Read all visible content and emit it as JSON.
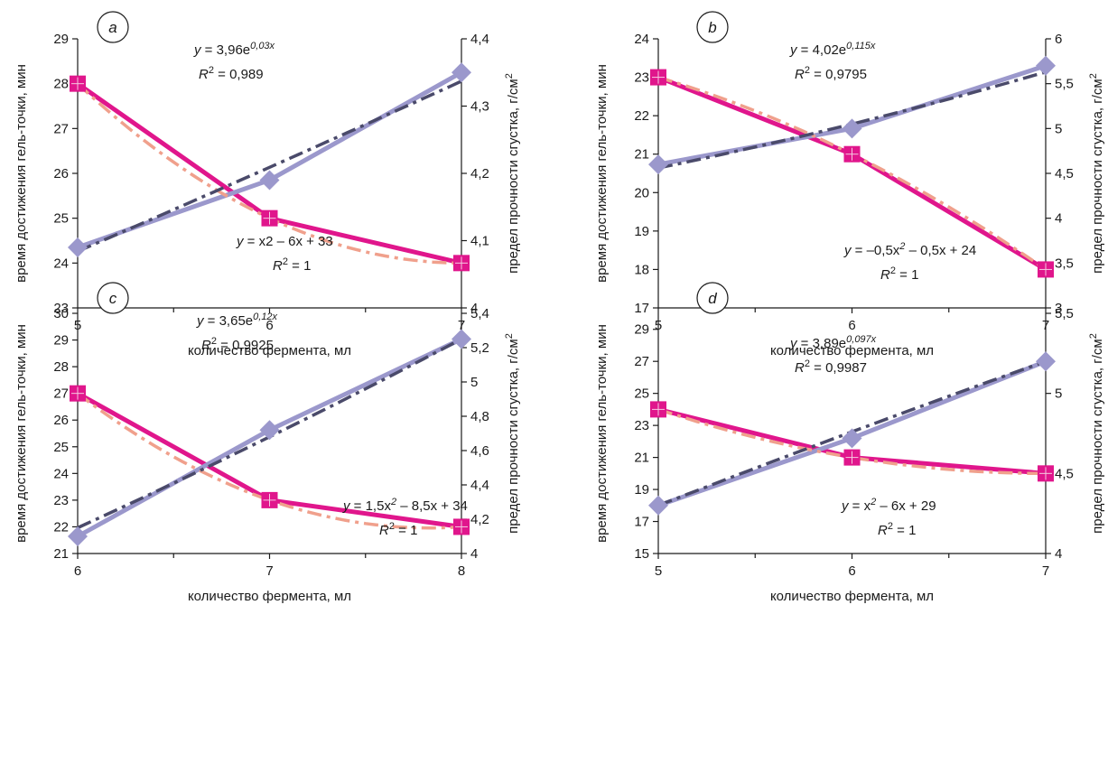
{
  "chart_data": [
    {
      "type": "line",
      "panel_label": "a",
      "xlabel": "количество фермента, мл",
      "ylabel": "время достижения гель-точки, мин",
      "y2label": "предел прочности сгустка, г/см",
      "y2label_sup": "2",
      "x": [
        5,
        6,
        7
      ],
      "xlim": [
        5,
        7
      ],
      "xticks": [
        "5",
        "6",
        "7"
      ],
      "ylim": [
        23,
        29
      ],
      "yticks": [
        "23",
        "24",
        "25",
        "26",
        "27",
        "28",
        "29"
      ],
      "y2lim": [
        4,
        4.4
      ],
      "y2ticks": [
        "4",
        "4,1",
        "4,2",
        "4,3",
        "4,4"
      ],
      "series": [
        {
          "axis": "left",
          "values": [
            28,
            25,
            24
          ],
          "color": "#e0168c",
          "marker": "square",
          "trend": {
            "color": "#f0a08c",
            "values": [
              28,
              25,
              24
            ]
          }
        },
        {
          "axis": "right",
          "values": [
            4.09,
            4.19,
            4.35
          ],
          "color": "#9b98cc",
          "marker": "diamond",
          "trend": {
            "color": "#4a4a6a",
            "values": [
              4.084,
              4.209,
              4.337
            ]
          }
        }
      ],
      "equations": [
        {
          "line1": [
            "y",
            " = 3,96e",
            "0,03x",
            ""
          ],
          "line2": [
            "R",
            "2",
            " = 0,989"
          ]
        },
        {
          "line1": [
            "y",
            " = x2 – 6x + 33",
            "",
            ""
          ],
          "line2": [
            "R",
            "2",
            " = 1"
          ]
        }
      ]
    },
    {
      "type": "line",
      "panel_label": "b",
      "xlabel": "количество фермента, мл",
      "ylabel": "время достижения гель-точки, мин",
      "y2label": "предел прочности сгустка, г/см",
      "y2label_sup": "2",
      "x": [
        5,
        6,
        7
      ],
      "xlim": [
        5,
        7
      ],
      "xticks": [
        "5",
        "6",
        "7"
      ],
      "ylim": [
        17,
        24
      ],
      "yticks": [
        "17",
        "18",
        "19",
        "20",
        "21",
        "22",
        "23",
        "24"
      ],
      "y2lim": [
        3,
        6
      ],
      "y2ticks": [
        "3",
        "3,5",
        "4",
        "4,5",
        "5",
        "5,5",
        "6"
      ],
      "series": [
        {
          "axis": "left",
          "values": [
            23,
            21,
            18
          ],
          "color": "#e0168c",
          "marker": "square",
          "trend": {
            "color": "#f0a08c",
            "values": [
              23,
              21,
              18
            ]
          }
        },
        {
          "axis": "right",
          "values": [
            4.6,
            5.0,
            5.7
          ],
          "color": "#9b98cc",
          "marker": "diamond",
          "trend": {
            "color": "#4a4a6a",
            "values": [
              4.56,
              5.05,
              5.63
            ]
          }
        }
      ],
      "equations": [
        {
          "line1": [
            "y",
            " = 4,02e",
            "0,115x",
            ""
          ],
          "line2": [
            "R",
            "2",
            " = 0,9795"
          ]
        },
        {
          "line1": [
            "y",
            " = –0,5x",
            "2",
            " – 0,5x + 24"
          ],
          "line2": [
            "R",
            "2",
            " = 1"
          ]
        }
      ]
    },
    {
      "type": "line",
      "panel_label": "c",
      "xlabel": "количество фермента, мл",
      "ylabel": "время достижения гель-точки, мин",
      "y2label": "предел прочности сгустка, г/см",
      "y2label_sup": "2",
      "x": [
        6,
        7,
        8
      ],
      "xlim": [
        6,
        8
      ],
      "xticks": [
        "6",
        "7",
        "8"
      ],
      "ylim": [
        21,
        30
      ],
      "yticks": [
        "21",
        "22",
        "23",
        "24",
        "25",
        "26",
        "27",
        "28",
        "29",
        "30"
      ],
      "y2lim": [
        4,
        5.4
      ],
      "y2ticks": [
        "4",
        "4,2",
        "4,4",
        "4,6",
        "4,8",
        "5",
        "5,2",
        "5,4"
      ],
      "series": [
        {
          "axis": "left",
          "values": [
            27,
            23,
            22
          ],
          "color": "#e0168c",
          "marker": "square",
          "trend": {
            "color": "#f0a08c",
            "values": [
              27,
              23,
              22
            ]
          }
        },
        {
          "axis": "right",
          "values": [
            4.1,
            4.72,
            5.25
          ],
          "color": "#9b98cc",
          "marker": "diamond",
          "trend": {
            "color": "#4a4a6a",
            "values": [
              4.15,
              4.68,
              5.25
            ]
          }
        }
      ],
      "equations": [
        {
          "line1": [
            "y",
            " = 3,65e",
            "0,12x",
            ""
          ],
          "line2": [
            "R",
            "2",
            " = 0,9925"
          ]
        },
        {
          "line1": [
            "y",
            " = 1,5x",
            "2",
            " – 8,5x + 34"
          ],
          "line2": [
            "R",
            "2",
            " = 1"
          ]
        }
      ]
    },
    {
      "type": "line",
      "panel_label": "d",
      "xlabel": "количество фермента, мл",
      "ylabel": "время достижения гель-точки, мин",
      "y2label": "предел прочности сгустка, г/см",
      "y2label_sup": "2",
      "x": [
        5,
        6,
        7
      ],
      "xlim": [
        5,
        7
      ],
      "xticks": [
        "5",
        "6",
        "7"
      ],
      "ylim": [
        15,
        30
      ],
      "yticks": [
        "15",
        "17",
        "19",
        "21",
        "23",
        "25",
        "27",
        "29"
      ],
      "y2lim": [
        4,
        5.5
      ],
      "y2ticks": [
        "4",
        "4,5",
        "5",
        "5,5"
      ],
      "series": [
        {
          "axis": "left",
          "values": [
            24,
            21,
            20
          ],
          "color": "#e0168c",
          "marker": "square",
          "trend": {
            "color": "#f0a08c",
            "values": [
              24,
              21,
              20
            ]
          }
        },
        {
          "axis": "right",
          "values": [
            4.3,
            4.72,
            5.2
          ],
          "color": "#9b98cc",
          "marker": "diamond",
          "trend": {
            "color": "#4a4a6a",
            "values": [
              4.3,
              4.76,
              5.2
            ]
          }
        }
      ],
      "equations": [
        {
          "line1": [
            "y",
            " = 3,89e",
            "0,097x",
            ""
          ],
          "line2": [
            "R",
            "2",
            " = 0,9987"
          ]
        },
        {
          "line1": [
            "y",
            " = x",
            "2",
            " – 6x + 29"
          ],
          "line2": [
            "R",
            "2",
            " = 1"
          ]
        }
      ]
    }
  ]
}
